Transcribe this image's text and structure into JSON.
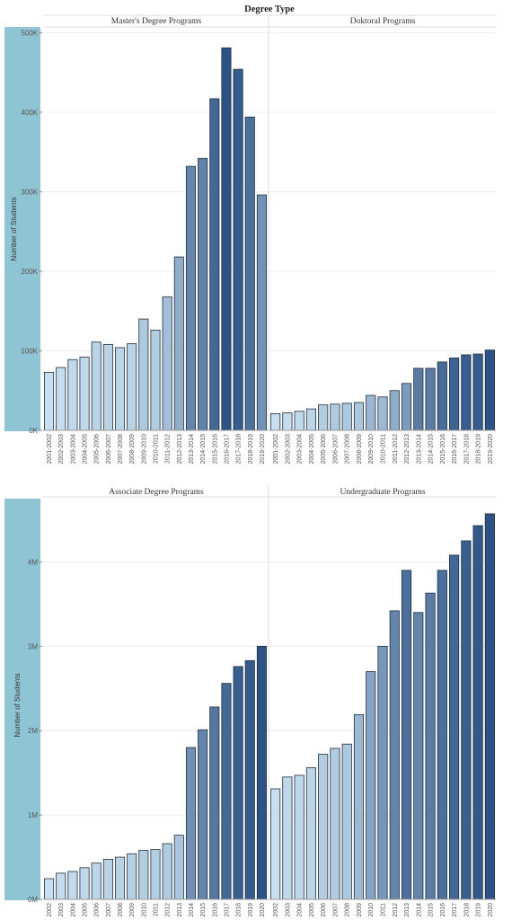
{
  "header_title": "Degree Type",
  "colors": {
    "light": "#c7dfee",
    "dark": "#2c5286",
    "axis_band": "#8fc4d4",
    "stroke": "#1f2f3d",
    "grid": "#ececec"
  },
  "chart_data": [
    {
      "type": "bar",
      "title": "Master's Degree Programs",
      "ylabel": "Number of Students",
      "ylim": [
        0,
        505000
      ],
      "yticks": [
        0,
        100000,
        200000,
        300000,
        400000,
        500000
      ],
      "ytick_labels": [
        "0K",
        "100K",
        "200K",
        "300K",
        "400K",
        "500K"
      ],
      "categories": [
        "2001-2002",
        "2002-2003",
        "2003-2004",
        "2004-2005",
        "2005-2006",
        "2006-2007",
        "2007-2008",
        "2008-2009",
        "2009-2010",
        "2010-2011",
        "2011-2012",
        "2012-2013",
        "2013-2014",
        "2014-2015",
        "2015-2016",
        "2016-2017",
        "2017-2018",
        "2018-2019",
        "2019-2020"
      ],
      "values": [
        73000,
        79000,
        89000,
        92000,
        111000,
        108000,
        104000,
        109000,
        140000,
        126000,
        168000,
        218000,
        332000,
        342000,
        417000,
        481000,
        454000,
        394000,
        296000
      ]
    },
    {
      "type": "bar",
      "title": "Doktoral Programs",
      "ylim": [
        0,
        505000
      ],
      "categories": [
        "2001-2002",
        "2002-2003",
        "2003-2004",
        "2004-2005",
        "2005-2006",
        "2006-2007",
        "2007-2008",
        "2008-2009",
        "2009-2010",
        "2010-2011",
        "2011-2012",
        "2012-2013",
        "2013-2014",
        "2014-2015",
        "2015-2016",
        "2016-2017",
        "2017-2018",
        "2018-2019",
        "2019-2020"
      ],
      "values": [
        21000,
        22000,
        24000,
        27000,
        32000,
        33000,
        34000,
        35000,
        44000,
        42000,
        50000,
        59000,
        78000,
        78000,
        86000,
        91000,
        95000,
        96000,
        101000
      ]
    },
    {
      "type": "bar",
      "title": "Associate Degree Programs",
      "ylabel": "Number of Students",
      "ylim": [
        0,
        4750000
      ],
      "yticks": [
        0,
        1000000,
        2000000,
        3000000,
        4000000
      ],
      "ytick_labels": [
        "0M",
        "1M",
        "2M",
        "3M",
        "4M"
      ],
      "categories": [
        "2001-2002",
        "2002-2003",
        "2003-2004",
        "2004-2005",
        "2005-2006",
        "2006-2007",
        "2007-2008",
        "2008-2009",
        "2009-2010",
        "2010-2011",
        "2011-2012",
        "2012-2013",
        "2013-2014",
        "2014-2015",
        "2015-2016",
        "2016-2017",
        "2017-2018",
        "2018-2019",
        "2019-2020"
      ],
      "values": [
        245000,
        310000,
        330000,
        375000,
        430000,
        475000,
        500000,
        540000,
        580000,
        590000,
        660000,
        760000,
        1800000,
        2010000,
        2280000,
        2560000,
        2760000,
        2830000,
        3000000
      ]
    },
    {
      "type": "bar",
      "title": "Undergraduate Programs",
      "ylim": [
        0,
        4750000
      ],
      "categories": [
        "2001-2002",
        "2002-2003",
        "2003-2004",
        "2004-2005",
        "2005-2006",
        "2006-2007",
        "2007-2008",
        "2008-2009",
        "2009-2010",
        "2010-2011",
        "2011-2012",
        "2012-2013",
        "2013-2014",
        "2014-2015",
        "2015-2016",
        "2016-2017",
        "2017-2018",
        "2018-2019",
        "2019-2020"
      ],
      "values": [
        1310000,
        1450000,
        1470000,
        1560000,
        1720000,
        1790000,
        1840000,
        2190000,
        2700000,
        3000000,
        3420000,
        3900000,
        3400000,
        3630000,
        3900000,
        4080000,
        4250000,
        4430000,
        4570000
      ]
    }
  ],
  "bottom_tick_labels": [
    "2002",
    "2003",
    "2004",
    "2005",
    "2006",
    "2007",
    "2008",
    "2009",
    "2010",
    "2011",
    "2012",
    "2013",
    "2014",
    "2015",
    "2016",
    "2017",
    "2018",
    "2019",
    "2020"
  ]
}
